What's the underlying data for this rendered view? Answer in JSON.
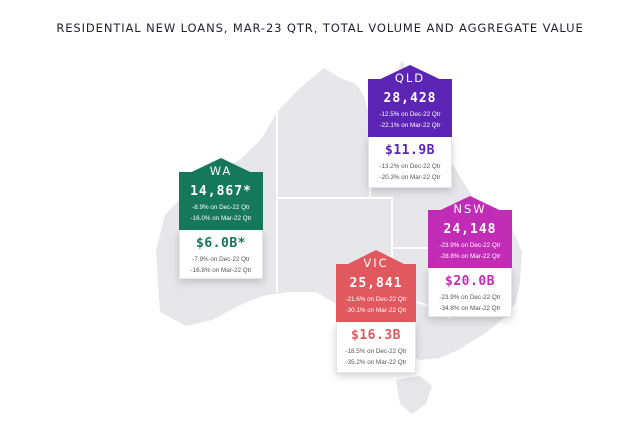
{
  "title": "RESIDENTIAL NEW LOANS, MAR-23 QTR, TOTAL VOLUME AND AGGREGATE VALUE",
  "colors": {
    "map_land": "#e7e7eb",
    "map_border": "#ffffff",
    "wa": "#15785a",
    "qld": "#5b24b4",
    "nsw": "#c22bb6",
    "vic": "#e2585f"
  },
  "states": {
    "wa": {
      "code": "WA",
      "volume": "14,867*",
      "volume_changes": [
        "-8.9% on Dec-22 Qtr",
        "-16.0% on Mar-22 Qtr"
      ],
      "value": "$6.0B*",
      "value_changes": [
        "-7.9% on Dec-22 Qtr",
        "-16.8% on Mar-22 Qtr"
      ]
    },
    "qld": {
      "code": "QLD",
      "volume": "28,428",
      "volume_changes": [
        "-12.5% on Dec-22 Qtr",
        "-22.1% on Mar-22 Qtr"
      ],
      "value": "$11.9B",
      "value_changes": [
        "-13.2% on Dec-22 Qtr",
        "-20.3% on Mar-22 Qtr"
      ]
    },
    "nsw": {
      "code": "NSW",
      "volume": "24,148",
      "volume_changes": [
        "-23.9% on Dec-22 Qtr",
        "-28.8% on Mar-22 Qtr"
      ],
      "value": "$20.0B",
      "value_changes": [
        "-23.9% on Dec-22 Qtr",
        "-34.8% on Mar-22 Qtr"
      ]
    },
    "vic": {
      "code": "VIC",
      "volume": "25,841",
      "volume_changes": [
        "-21.6% on Dec-22 Qtr",
        "-30.1% on Mar-22 Qtr"
      ],
      "value": "$16.3B",
      "value_changes": [
        "-18.5% on Dec-22 Qtr",
        "-35.2% on Mar-22 Qtr"
      ]
    }
  }
}
